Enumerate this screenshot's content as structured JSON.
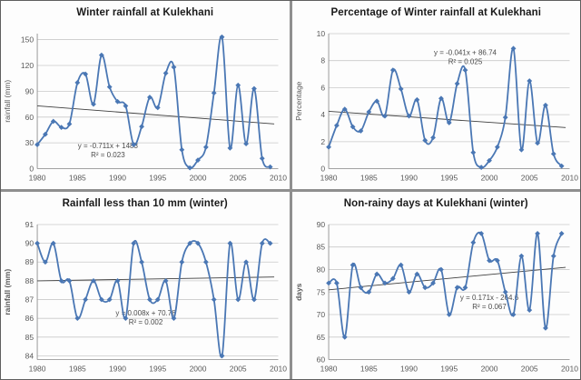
{
  "colors": {
    "series": "#4a77b4",
    "trendline": "#3f3f3f",
    "gridline": "#c9c9c9",
    "axis": "#9a9a9a",
    "tick_text": "#595959",
    "title_text": "#1a1a1a",
    "annotation_text": "#4a4a4a",
    "panel_bg": "#fdfdfd",
    "divider": "#8f8f8f"
  },
  "chart_data": [
    {
      "type": "line",
      "title": "Winter rainfall at Kulekhani",
      "xlabel": "",
      "ylabel": "rainfall (mm)",
      "marker": "diamond",
      "grid": "horizontal",
      "legend": "none",
      "x": [
        1980,
        1981,
        1982,
        1983,
        1984,
        1985,
        1986,
        1987,
        1988,
        1989,
        1990,
        1991,
        1992,
        1993,
        1994,
        1995,
        1996,
        1997,
        1998,
        1999,
        2000,
        2001,
        2002,
        2003,
        2004,
        2005,
        2006,
        2007,
        2008,
        2009
      ],
      "values": [
        28,
        40,
        55,
        48,
        52,
        100,
        110,
        75,
        132,
        95,
        78,
        73,
        28,
        49,
        83,
        71,
        111,
        118,
        22,
        1,
        10,
        25,
        88,
        153,
        24,
        97,
        29,
        93,
        12,
        2
      ],
      "xlim": [
        1980,
        2010
      ],
      "ylim": [
        0,
        157
      ],
      "xticks": [
        1980,
        1985,
        1990,
        1995,
        2000,
        2005,
        2010
      ],
      "yticks": [
        0,
        30,
        60,
        90,
        120,
        150
      ],
      "trendline": {
        "start_y": 73,
        "end_y": 52,
        "equation": "y = -0.711x + 1483",
        "r_squared": "R² = 0.023"
      },
      "annotation_pos": [
        1988.8,
        24
      ]
    },
    {
      "type": "line",
      "title": "Percentage of Winter rainfall at Kulekhani",
      "xlabel": "",
      "ylabel": "Percentage",
      "marker": "diamond",
      "grid": "horizontal",
      "legend": "none",
      "x": [
        1980,
        1981,
        1982,
        1983,
        1984,
        1985,
        1986,
        1987,
        1988,
        1989,
        1990,
        1991,
        1992,
        1993,
        1994,
        1995,
        1996,
        1997,
        1998,
        1999,
        2000,
        2001,
        2002,
        2003,
        2004,
        2005,
        2006,
        2007,
        2008,
        2009
      ],
      "values": [
        1.6,
        3.2,
        4.4,
        3.1,
        2.8,
        4.2,
        5.0,
        3.9,
        7.3,
        5.9,
        3.9,
        5.1,
        2.1,
        2.3,
        5.2,
        3.4,
        6.3,
        7.3,
        1.2,
        0.1,
        0.6,
        1.6,
        3.8,
        8.9,
        1.4,
        6.5,
        1.9,
        4.7,
        1.1,
        0.2
      ],
      "xlim": [
        1980,
        2010
      ],
      "ylim": [
        0,
        10
      ],
      "xticks": [
        1980,
        1985,
        1990,
        1995,
        2000,
        2005,
        2010
      ],
      "yticks": [
        0,
        2,
        4,
        6,
        8,
        10
      ],
      "trendline": {
        "start_y": 4.25,
        "end_y": 3.05,
        "equation": "y = -0.041x + 86.74",
        "r_squared": "R² = 0.025"
      },
      "annotation_pos": [
        1997,
        8.4
      ]
    },
    {
      "type": "line",
      "title": "Rainfall less than 10 mm (winter)",
      "xlabel": "",
      "ylabel": "rainfall (mm)",
      "marker": "diamond",
      "grid": "horizontal",
      "legend": "none",
      "x": [
        1980,
        1981,
        1982,
        1983,
        1984,
        1985,
        1986,
        1987,
        1988,
        1989,
        1990,
        1991,
        1992,
        1993,
        1994,
        1995,
        1996,
        1997,
        1998,
        1999,
        2000,
        2001,
        2002,
        2003,
        2004,
        2005,
        2006,
        2007,
        2008,
        2009
      ],
      "values": [
        90,
        89,
        90,
        88,
        88,
        86,
        87,
        88,
        87,
        87,
        88,
        86,
        90,
        89,
        87,
        87,
        88,
        86,
        89,
        90,
        90,
        89,
        87,
        84,
        90,
        87,
        89,
        87,
        90,
        90
      ],
      "xlim": [
        1980,
        2010
      ],
      "ylim": [
        83.8,
        91
      ],
      "xticks": [
        1980,
        1985,
        1990,
        1995,
        2000,
        2005,
        2010
      ],
      "yticks": [
        84,
        85,
        86,
        87,
        88,
        89,
        90,
        91
      ],
      "trendline": {
        "start_y": 88.0,
        "end_y": 88.2,
        "equation": "y = 0.008x + 70.78",
        "r_squared": "R² = 0.002"
      },
      "annotation_pos": [
        1993.5,
        86.15
      ]
    },
    {
      "type": "line",
      "title": "Non-rainy days at Kulekhani (winter)",
      "xlabel": "",
      "ylabel": "days",
      "marker": "diamond",
      "grid": "horizontal",
      "legend": "none",
      "x": [
        1980,
        1981,
        1982,
        1983,
        1984,
        1985,
        1986,
        1987,
        1988,
        1989,
        1990,
        1991,
        1992,
        1993,
        1994,
        1995,
        1996,
        1997,
        1998,
        1999,
        2000,
        2001,
        2002,
        2003,
        2004,
        2005,
        2006,
        2007,
        2008,
        2009
      ],
      "values": [
        77,
        77,
        65,
        81,
        76,
        75,
        79,
        77,
        78,
        81,
        75,
        79,
        76,
        77,
        80,
        70,
        76,
        76,
        86,
        88,
        82,
        82,
        75,
        70,
        83,
        71,
        88,
        67,
        83,
        88
      ],
      "xlim": [
        1980,
        2010
      ],
      "ylim": [
        60,
        90
      ],
      "xticks": [
        1980,
        1985,
        1990,
        1995,
        2000,
        2005,
        2010
      ],
      "yticks": [
        60,
        65,
        70,
        75,
        80,
        85,
        90
      ],
      "trendline": {
        "start_y": 75.5,
        "end_y": 80.5,
        "equation": "y = 0.171x - 264.6",
        "r_squared": "R² = 0.067"
      },
      "annotation_pos": [
        2000,
        73.2
      ]
    }
  ]
}
